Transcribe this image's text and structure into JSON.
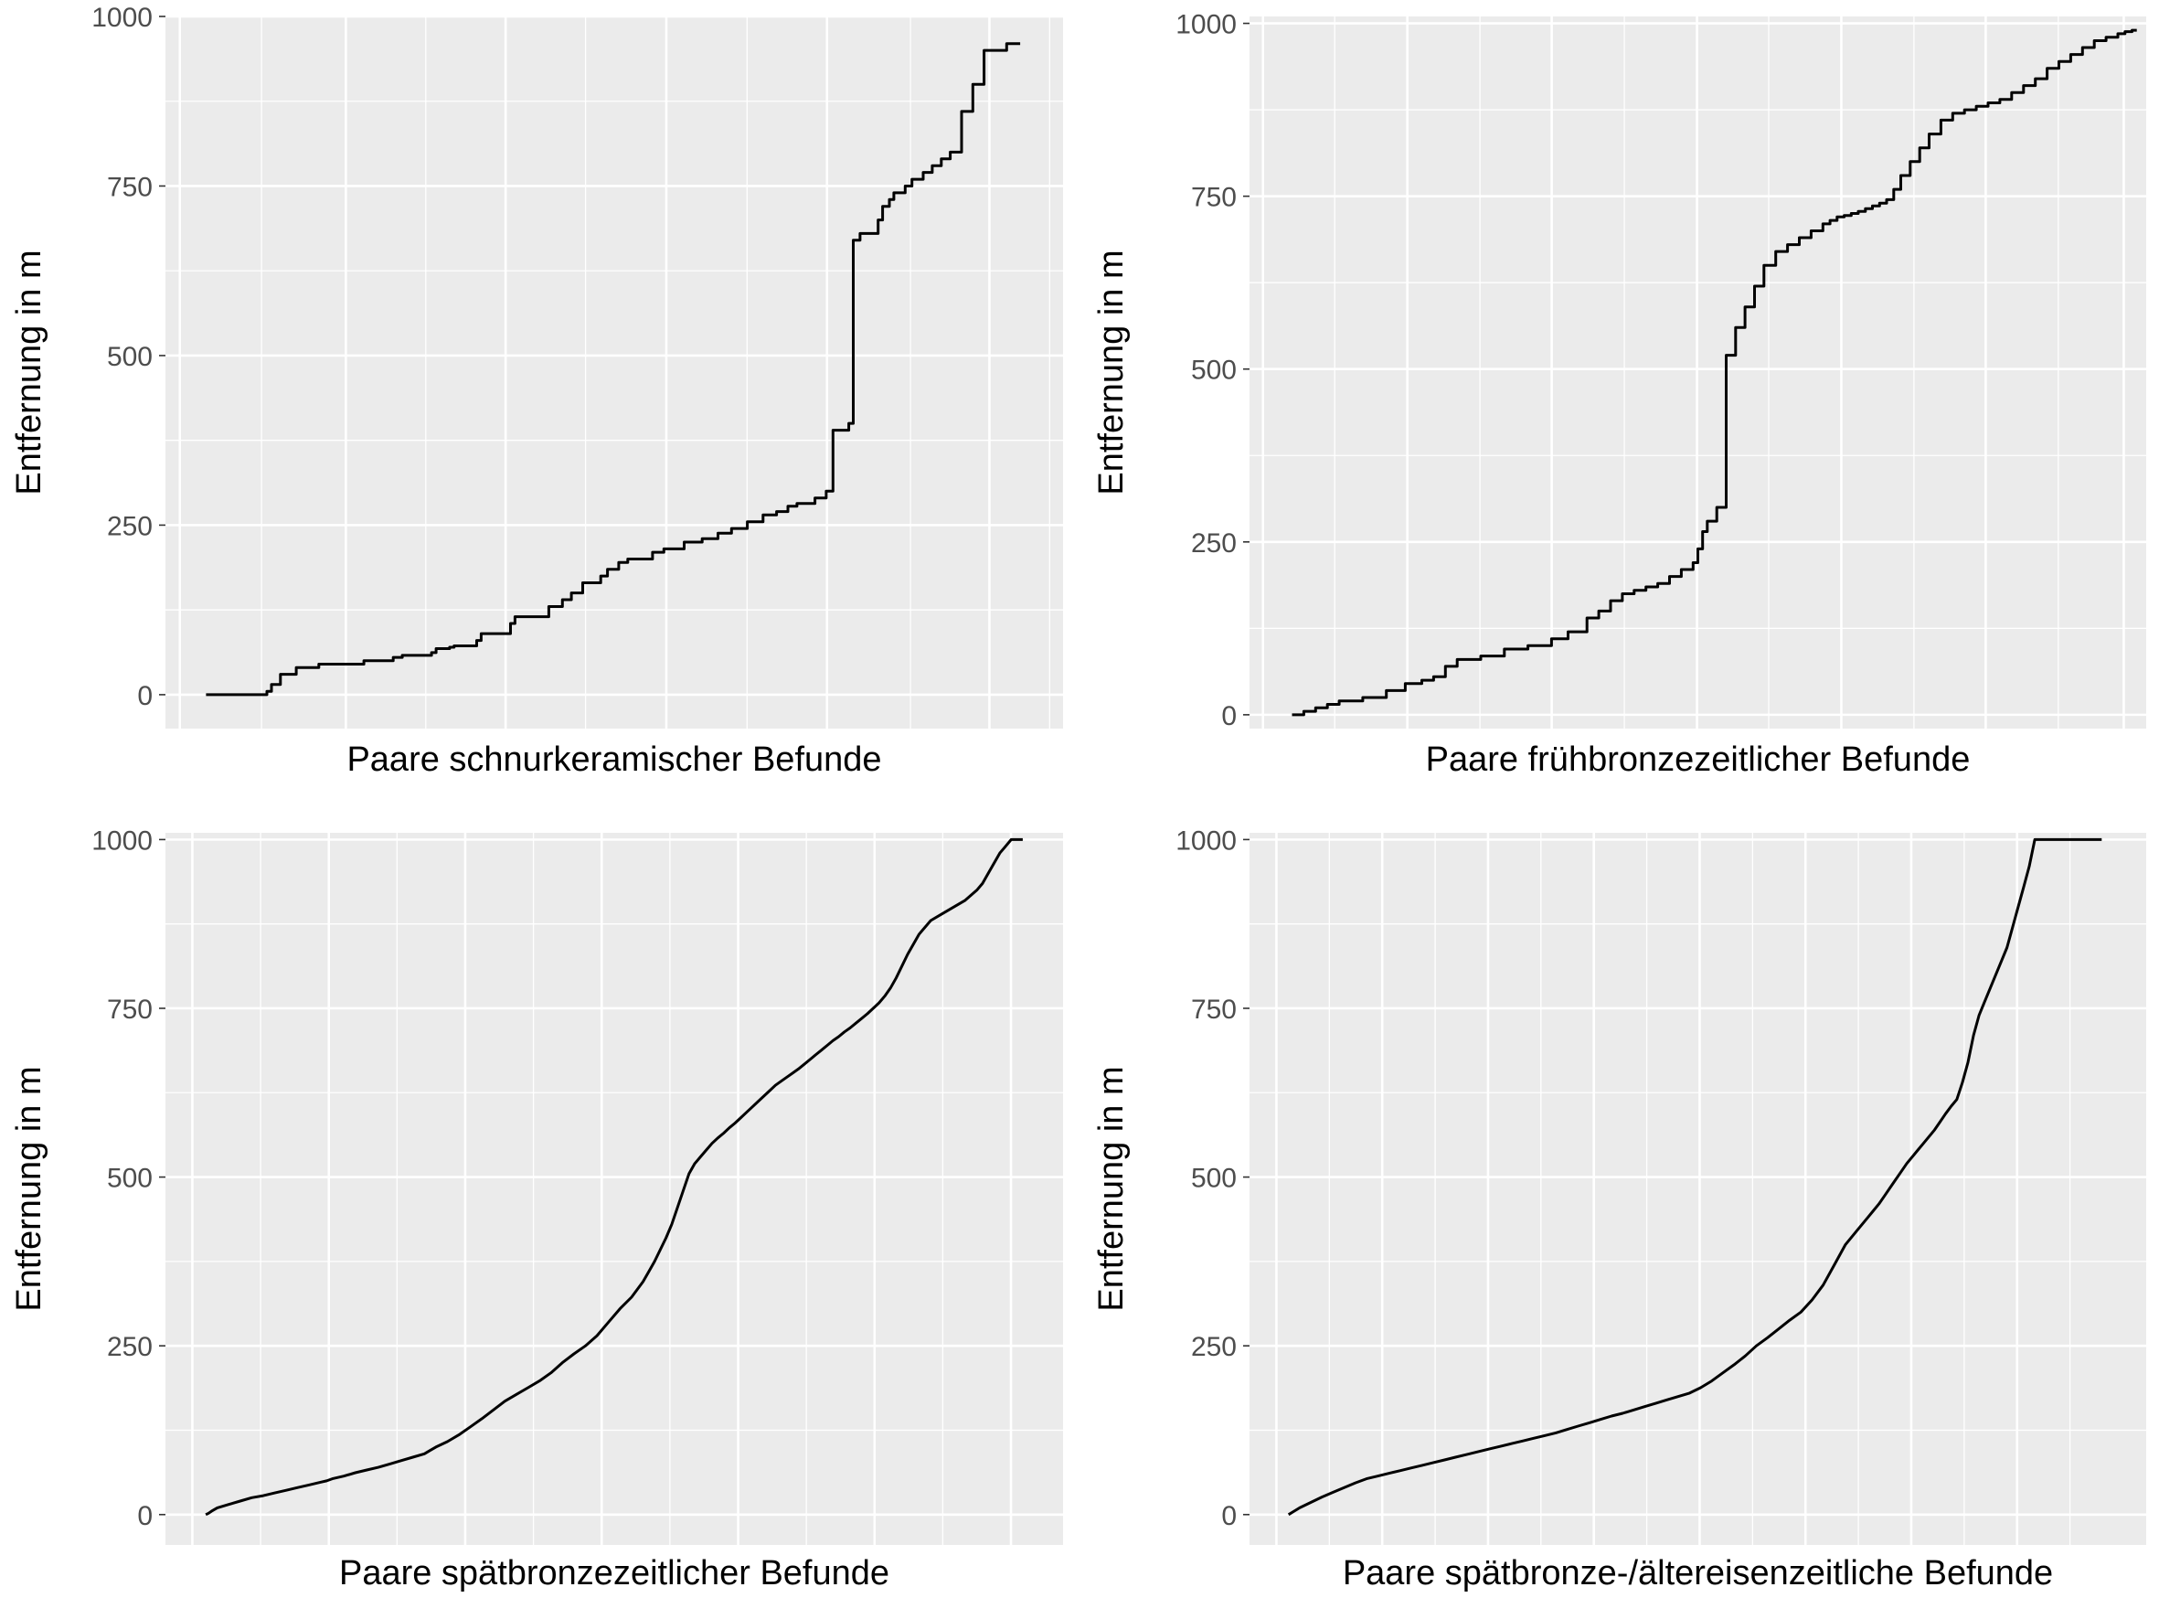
{
  "chart_data": [
    {
      "type": "line",
      "step": true,
      "xlabel": "Paare schnurkeramischer Befunde",
      "ylabel": "Entfernung in m",
      "yticks": [
        0,
        250,
        500,
        750,
        1000
      ],
      "ylim": [
        -50,
        1000
      ],
      "x_axis_labels": false,
      "grid": true,
      "x": [
        0,
        27,
        29,
        33,
        40,
        50,
        70,
        83,
        87,
        100,
        102,
        108,
        110,
        120,
        122,
        135,
        137,
        152,
        158,
        162,
        167,
        175,
        178,
        183,
        187,
        198,
        203,
        212,
        220,
        227,
        233,
        240,
        247,
        253,
        258,
        262,
        270,
        275,
        278,
        285,
        287,
        290,
        298,
        300,
        303,
        305,
        310,
        313,
        318,
        322,
        326,
        330,
        335,
        340,
        345,
        355,
        358,
        361
      ],
      "y": [
        0,
        5,
        15,
        30,
        40,
        45,
        50,
        55,
        58,
        62,
        68,
        70,
        72,
        80,
        90,
        105,
        115,
        130,
        140,
        150,
        165,
        175,
        185,
        195,
        200,
        210,
        215,
        225,
        230,
        238,
        245,
        255,
        265,
        270,
        278,
        282,
        290,
        300,
        390,
        400,
        670,
        680,
        700,
        720,
        730,
        740,
        750,
        760,
        770,
        780,
        790,
        800,
        860,
        900,
        950,
        960,
        960,
        960
      ],
      "xlim": [
        -18,
        380
      ]
    },
    {
      "type": "line",
      "step": true,
      "xlabel": "Paare frühbronzezeitlicher Befunde",
      "ylabel": "Entfernung in m",
      "yticks": [
        0,
        250,
        500,
        750,
        1000
      ],
      "ylim": [
        -20,
        1010
      ],
      "x_axis_labels": false,
      "grid": true,
      "x": [
        0,
        5,
        10,
        15,
        20,
        30,
        40,
        48,
        55,
        60,
        65,
        70,
        80,
        90,
        100,
        110,
        117,
        125,
        130,
        135,
        140,
        145,
        150,
        155,
        160,
        165,
        170,
        172,
        174,
        176,
        180,
        184,
        188,
        192,
        196,
        200,
        205,
        210,
        215,
        220,
        225,
        228,
        231,
        234,
        237,
        240,
        243,
        246,
        249,
        252,
        255,
        258,
        262,
        266,
        270,
        275,
        280,
        285,
        290,
        295,
        300,
        305,
        310,
        315,
        320,
        325,
        330,
        335,
        340,
        345,
        350,
        353,
        356,
        358
      ],
      "y": [
        0,
        5,
        10,
        15,
        20,
        25,
        35,
        45,
        50,
        55,
        70,
        80,
        85,
        95,
        100,
        110,
        120,
        140,
        150,
        165,
        175,
        180,
        185,
        190,
        200,
        210,
        220,
        240,
        265,
        280,
        300,
        520,
        560,
        590,
        620,
        650,
        670,
        680,
        690,
        700,
        710,
        715,
        720,
        722,
        725,
        728,
        732,
        736,
        740,
        745,
        760,
        780,
        800,
        820,
        840,
        860,
        870,
        875,
        880,
        885,
        890,
        900,
        910,
        920,
        935,
        945,
        955,
        965,
        975,
        980,
        985,
        988,
        990,
        990
      ],
      "xlim": [
        -18,
        362
      ]
    },
    {
      "type": "line",
      "xlabel": "Paare spätbronzezeitlicher Befunde",
      "ylabel": "Entfernung in m",
      "yticks": [
        0,
        250,
        500,
        750,
        1000
      ],
      "ylim": [
        -45,
        1010
      ],
      "x_axis_labels": false,
      "grid": true,
      "x": [
        0,
        5,
        10,
        20,
        40,
        60,
        80,
        100,
        120,
        140,
        160,
        180,
        200,
        210,
        220,
        240,
        260,
        280,
        300,
        320,
        340,
        360,
        380,
        390,
        400,
        420,
        440,
        460,
        480,
        500,
        520,
        540,
        560,
        580,
        600,
        620,
        640,
        660,
        680,
        700,
        720,
        740,
        760,
        770,
        780,
        800,
        810,
        820,
        830,
        840,
        850,
        860,
        870,
        880,
        890,
        900,
        910,
        920,
        930,
        940,
        950,
        960,
        970,
        980,
        990,
        1000,
        1010,
        1020,
        1030,
        1040,
        1050,
        1060,
        1070,
        1080,
        1090,
        1100,
        1110,
        1120,
        1130,
        1140,
        1150,
        1160,
        1170,
        1180,
        1190,
        1200,
        1220,
        1240,
        1260,
        1280,
        1300,
        1320,
        1340,
        1350,
        1360,
        1370,
        1380,
        1390,
        1400,
        1410,
        1420
      ],
      "y": [
        0,
        2,
        5,
        10,
        15,
        20,
        25,
        28,
        32,
        36,
        40,
        44,
        48,
        50,
        53,
        57,
        62,
        66,
        70,
        75,
        80,
        85,
        90,
        95,
        100,
        108,
        118,
        130,
        142,
        155,
        168,
        178,
        188,
        198,
        210,
        225,
        238,
        250,
        265,
        285,
        305,
        322,
        345,
        360,
        375,
        410,
        430,
        455,
        480,
        505,
        520,
        530,
        540,
        550,
        558,
        565,
        573,
        580,
        588,
        596,
        604,
        612,
        620,
        628,
        636,
        642,
        648,
        654,
        660,
        667,
        674,
        681,
        688,
        695,
        702,
        708,
        715,
        721,
        728,
        735,
        742,
        750,
        758,
        768,
        780,
        795,
        830,
        860,
        880,
        890,
        900,
        910,
        925,
        935,
        950,
        965,
        980,
        990,
        1000,
        1000,
        1000
      ],
      "xlim": [
        -70,
        1490
      ]
    },
    {
      "type": "line",
      "xlabel": "Paare spätbronze-/ältereisenzeitliche Befunde",
      "ylabel": "Entfernung in m",
      "yticks": [
        0,
        250,
        500,
        750,
        1000
      ],
      "ylim": [
        -45,
        1010
      ],
      "x_axis_labels": false,
      "grid": true,
      "x": [
        0,
        10,
        20,
        40,
        60,
        80,
        100,
        120,
        140,
        160,
        180,
        200,
        220,
        240,
        260,
        280,
        300,
        320,
        340,
        360,
        380,
        400,
        420,
        440,
        460,
        480,
        500,
        520,
        540,
        560,
        580,
        600,
        620,
        640,
        660,
        680,
        700,
        720,
        740,
        760,
        780,
        800,
        820,
        840,
        860,
        880,
        900,
        920,
        940,
        960,
        980,
        1000,
        1020,
        1030,
        1040,
        1050,
        1060,
        1070,
        1080,
        1090,
        1100,
        1110,
        1120,
        1130,
        1140,
        1150,
        1160,
        1170,
        1180,
        1190,
        1200,
        1210,
        1220,
        1230,
        1240,
        1250,
        1260,
        1270,
        1280,
        1290,
        1300,
        1310,
        1320,
        1330,
        1340,
        1350,
        1360,
        1370,
        1380,
        1390,
        1400,
        1410,
        1420,
        1430,
        1440,
        1450,
        1460
      ],
      "y": [
        0,
        5,
        10,
        18,
        26,
        33,
        40,
        47,
        53,
        57,
        61,
        65,
        69,
        73,
        77,
        81,
        85,
        89,
        93,
        97,
        101,
        105,
        109,
        113,
        117,
        121,
        126,
        131,
        136,
        141,
        146,
        150,
        155,
        160,
        165,
        170,
        175,
        180,
        188,
        198,
        210,
        222,
        235,
        250,
        262,
        275,
        288,
        300,
        318,
        340,
        370,
        400,
        420,
        430,
        440,
        450,
        460,
        472,
        484,
        496,
        508,
        520,
        530,
        540,
        550,
        560,
        570,
        582,
        594,
        605,
        615,
        640,
        670,
        710,
        740,
        760,
        780,
        800,
        820,
        840,
        870,
        900,
        930,
        960,
        1000,
        1000,
        1000,
        1000,
        1000,
        1000,
        1000,
        1000,
        1000,
        1000,
        1000,
        1000,
        1000
      ],
      "xlim": [
        -70,
        1540
      ]
    }
  ]
}
